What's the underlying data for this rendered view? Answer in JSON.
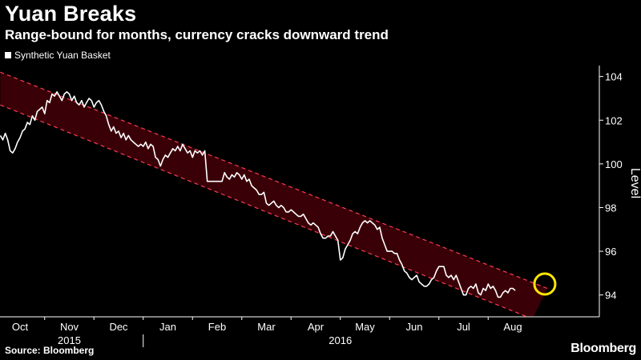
{
  "header": {
    "title": "Yuan Breaks",
    "subtitle": "Range-bound for months, currency cracks downward trend"
  },
  "legend": {
    "label": "Synthetic Yuan Basket",
    "color": "#ffffff"
  },
  "footer": {
    "source": "Source: Bloomberg",
    "brand": "Bloomberg"
  },
  "chart_data": {
    "type": "line",
    "title": "Yuan Breaks",
    "subtitle": "Range-bound for months, currency cracks downward trend",
    "ylabel": "Level",
    "xlabel": "",
    "ylim": [
      93,
      104.5
    ],
    "yticks": [
      94,
      96,
      98,
      100,
      102,
      104
    ],
    "x_domain": [
      0,
      11
    ],
    "months": [
      {
        "label": "Oct",
        "x": 0
      },
      {
        "label": "Nov",
        "x": 1
      },
      {
        "label": "Dec",
        "x": 2
      },
      {
        "label": "Jan",
        "x": 3
      },
      {
        "label": "Feb",
        "x": 4
      },
      {
        "label": "Mar",
        "x": 5
      },
      {
        "label": "Apr",
        "x": 6
      },
      {
        "label": "May",
        "x": 7
      },
      {
        "label": "Jun",
        "x": 8
      },
      {
        "label": "Jul",
        "x": 9
      },
      {
        "label": "Aug",
        "x": 10
      }
    ],
    "years": [
      {
        "label": "2015",
        "x": 1
      },
      {
        "label": "2016",
        "x": 6.5
      }
    ],
    "year_divider_x": 2.5,
    "channel": {
      "upper": [
        [
          -0.4,
          104.2
        ],
        [
          10.7,
          94.3
        ]
      ],
      "lower": [
        [
          -0.4,
          102.7
        ],
        [
          10.4,
          92.9
        ]
      ],
      "fill": "#3a0008",
      "stroke": "#ff3b4f"
    },
    "series": [
      {
        "name": "Synthetic Yuan Basket",
        "color": "#ffffff",
        "points": [
          [
            -0.4,
            101.3
          ],
          [
            -0.35,
            101.1
          ],
          [
            -0.3,
            101.4
          ],
          [
            -0.25,
            101.1
          ],
          [
            -0.2,
            100.6
          ],
          [
            -0.15,
            100.5
          ],
          [
            -0.1,
            100.7
          ],
          [
            -0.05,
            101.0
          ],
          [
            0.0,
            101.2
          ],
          [
            0.05,
            101.5
          ],
          [
            0.1,
            101.6
          ],
          [
            0.15,
            101.9
          ],
          [
            0.2,
            101.8
          ],
          [
            0.25,
            102.2
          ],
          [
            0.3,
            102.0
          ],
          [
            0.35,
            102.4
          ],
          [
            0.4,
            102.5
          ],
          [
            0.45,
            102.6
          ],
          [
            0.5,
            102.3
          ],
          [
            0.55,
            102.9
          ],
          [
            0.6,
            102.8
          ],
          [
            0.65,
            103.2
          ],
          [
            0.7,
            103.1
          ],
          [
            0.75,
            103.3
          ],
          [
            0.8,
            103.1
          ],
          [
            0.85,
            102.9
          ],
          [
            0.9,
            103.2
          ],
          [
            0.95,
            103.3
          ],
          [
            1.0,
            103.2
          ],
          [
            1.05,
            102.9
          ],
          [
            1.1,
            103.1
          ],
          [
            1.15,
            102.8
          ],
          [
            1.2,
            102.7
          ],
          [
            1.25,
            102.9
          ],
          [
            1.3,
            102.6
          ],
          [
            1.35,
            102.8
          ],
          [
            1.4,
            103.0
          ],
          [
            1.45,
            102.9
          ],
          [
            1.5,
            102.6
          ],
          [
            1.55,
            102.8
          ],
          [
            1.6,
            102.9
          ],
          [
            1.65,
            102.7
          ],
          [
            1.7,
            102.4
          ],
          [
            1.75,
            102.2
          ],
          [
            1.8,
            101.8
          ],
          [
            1.85,
            101.5
          ],
          [
            1.9,
            101.7
          ],
          [
            1.95,
            101.4
          ],
          [
            2.0,
            101.5
          ],
          [
            2.05,
            101.2
          ],
          [
            2.1,
            101.4
          ],
          [
            2.15,
            101.1
          ],
          [
            2.2,
            101.3
          ],
          [
            2.25,
            101.1
          ],
          [
            2.3,
            101.0
          ],
          [
            2.35,
            100.9
          ],
          [
            2.4,
            100.8
          ],
          [
            2.45,
            100.9
          ],
          [
            2.5,
            100.8
          ],
          [
            2.55,
            101.0
          ],
          [
            2.6,
            100.7
          ],
          [
            2.65,
            100.9
          ],
          [
            2.7,
            100.8
          ],
          [
            2.75,
            100.3
          ],
          [
            2.8,
            100.2
          ],
          [
            2.85,
            99.9
          ],
          [
            2.9,
            100.2
          ],
          [
            2.95,
            100.4
          ],
          [
            3.0,
            100.3
          ],
          [
            3.05,
            100.5
          ],
          [
            3.1,
            100.7
          ],
          [
            3.15,
            100.6
          ],
          [
            3.2,
            100.8
          ],
          [
            3.25,
            100.6
          ],
          [
            3.3,
            100.9
          ],
          [
            3.35,
            100.7
          ],
          [
            3.4,
            100.5
          ],
          [
            3.45,
            100.6
          ],
          [
            3.5,
            100.3
          ],
          [
            3.55,
            100.6
          ],
          [
            3.6,
            100.5
          ],
          [
            3.65,
            100.6
          ],
          [
            3.7,
            100.4
          ],
          [
            3.75,
            100.6
          ],
          [
            3.8,
            99.2
          ],
          [
            3.85,
            99.2
          ],
          [
            3.9,
            99.2
          ],
          [
            3.95,
            99.2
          ],
          [
            4.0,
            99.2
          ],
          [
            4.05,
            99.2
          ],
          [
            4.1,
            99.2
          ],
          [
            4.15,
            99.6
          ],
          [
            4.2,
            99.4
          ],
          [
            4.25,
            99.3
          ],
          [
            4.3,
            99.5
          ],
          [
            4.35,
            99.4
          ],
          [
            4.4,
            99.6
          ],
          [
            4.45,
            99.5
          ],
          [
            4.5,
            99.3
          ],
          [
            4.55,
            99.5
          ],
          [
            4.6,
            99.2
          ],
          [
            4.65,
            99.3
          ],
          [
            4.7,
            99.0
          ],
          [
            4.75,
            98.9
          ],
          [
            4.8,
            98.8
          ],
          [
            4.85,
            98.6
          ],
          [
            4.9,
            98.6
          ],
          [
            4.95,
            98.7
          ],
          [
            5.0,
            98.2
          ],
          [
            5.05,
            98.1
          ],
          [
            5.1,
            98.2
          ],
          [
            5.15,
            98.3
          ],
          [
            5.2,
            98.1
          ],
          [
            5.25,
            98.0
          ],
          [
            5.3,
            98.1
          ],
          [
            5.35,
            98.0
          ],
          [
            5.4,
            97.8
          ],
          [
            5.45,
            97.8
          ],
          [
            5.5,
            97.9
          ],
          [
            5.55,
            97.8
          ],
          [
            5.6,
            97.7
          ],
          [
            5.65,
            97.6
          ],
          [
            5.7,
            97.6
          ],
          [
            5.75,
            97.7
          ],
          [
            5.8,
            97.5
          ],
          [
            5.85,
            97.3
          ],
          [
            5.9,
            97.2
          ],
          [
            5.95,
            97.3
          ],
          [
            6.0,
            97.2
          ],
          [
            6.05,
            97.1
          ],
          [
            6.1,
            96.8
          ],
          [
            6.15,
            96.6
          ],
          [
            6.2,
            96.6
          ],
          [
            6.25,
            96.7
          ],
          [
            6.3,
            96.7
          ],
          [
            6.35,
            96.9
          ],
          [
            6.4,
            96.7
          ],
          [
            6.45,
            96.5
          ],
          [
            6.5,
            95.6
          ],
          [
            6.55,
            95.7
          ],
          [
            6.6,
            96.1
          ],
          [
            6.65,
            96.3
          ],
          [
            6.7,
            96.5
          ],
          [
            6.75,
            96.8
          ],
          [
            6.8,
            96.9
          ],
          [
            6.85,
            96.8
          ],
          [
            6.9,
            97.1
          ],
          [
            6.95,
            97.3
          ],
          [
            7.0,
            97.4
          ],
          [
            7.05,
            97.3
          ],
          [
            7.1,
            97.4
          ],
          [
            7.15,
            97.3
          ],
          [
            7.2,
            97.2
          ],
          [
            7.25,
            97.0
          ],
          [
            7.3,
            97.1
          ],
          [
            7.35,
            96.6
          ],
          [
            7.4,
            96.3
          ],
          [
            7.45,
            96.0
          ],
          [
            7.5,
            96.0
          ],
          [
            7.55,
            96.0
          ],
          [
            7.6,
            95.9
          ],
          [
            7.65,
            95.9
          ],
          [
            7.7,
            95.6
          ],
          [
            7.75,
            95.4
          ],
          [
            7.8,
            95.1
          ],
          [
            7.85,
            95.0
          ],
          [
            7.9,
            94.8
          ],
          [
            7.95,
            94.7
          ],
          [
            8.0,
            94.8
          ],
          [
            8.05,
            94.9
          ],
          [
            8.1,
            94.6
          ],
          [
            8.15,
            94.5
          ],
          [
            8.2,
            94.4
          ],
          [
            8.25,
            94.4
          ],
          [
            8.3,
            94.5
          ],
          [
            8.35,
            94.7
          ],
          [
            8.4,
            94.8
          ],
          [
            8.45,
            95.1
          ],
          [
            8.5,
            95.3
          ],
          [
            8.55,
            95.3
          ],
          [
            8.6,
            95.3
          ],
          [
            8.65,
            94.9
          ],
          [
            8.7,
            94.8
          ],
          [
            8.75,
            94.9
          ],
          [
            8.8,
            94.7
          ],
          [
            8.85,
            94.9
          ],
          [
            8.9,
            94.6
          ],
          [
            8.95,
            94.3
          ],
          [
            9.0,
            94.0
          ],
          [
            9.05,
            94.0
          ],
          [
            9.1,
            94.3
          ],
          [
            9.15,
            94.4
          ],
          [
            9.2,
            94.3
          ],
          [
            9.25,
            94.5
          ],
          [
            9.3,
            94.1
          ],
          [
            9.35,
            94.0
          ],
          [
            9.4,
            94.3
          ],
          [
            9.45,
            94.2
          ],
          [
            9.5,
            94.5
          ],
          [
            9.55,
            94.3
          ],
          [
            9.6,
            94.4
          ],
          [
            9.65,
            94.2
          ],
          [
            9.7,
            93.9
          ],
          [
            9.75,
            93.9
          ],
          [
            9.8,
            94.1
          ],
          [
            9.85,
            94.2
          ],
          [
            9.9,
            94.1
          ],
          [
            9.95,
            94.3
          ],
          [
            10.0,
            94.3
          ],
          [
            10.05,
            94.2
          ]
        ]
      }
    ],
    "annotation": {
      "type": "circle",
      "x": 10.65,
      "y": 94.5,
      "color": "#ffe600"
    }
  }
}
